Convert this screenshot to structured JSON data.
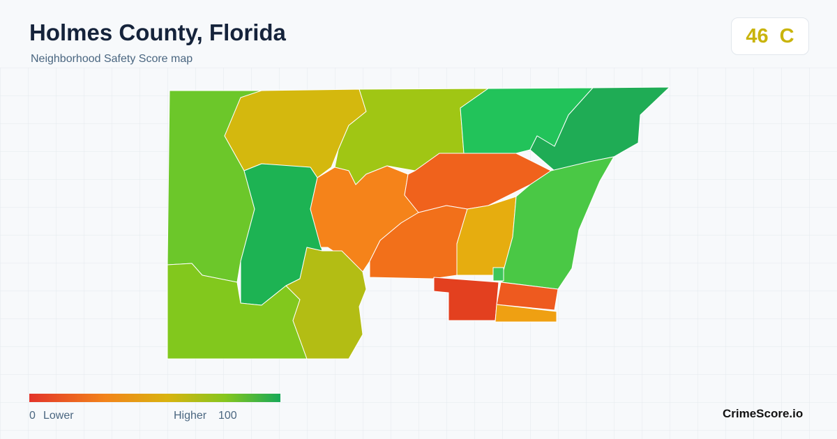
{
  "header": {
    "title": "Holmes County, Florida",
    "subtitle": "Neighborhood Safety Score map"
  },
  "score": {
    "value": "46",
    "grade": "C"
  },
  "legend": {
    "min": "0",
    "min_label": "Lower",
    "max_label": "Higher",
    "max": "100"
  },
  "footer": {
    "brand": "CrimeScore.io"
  }
}
